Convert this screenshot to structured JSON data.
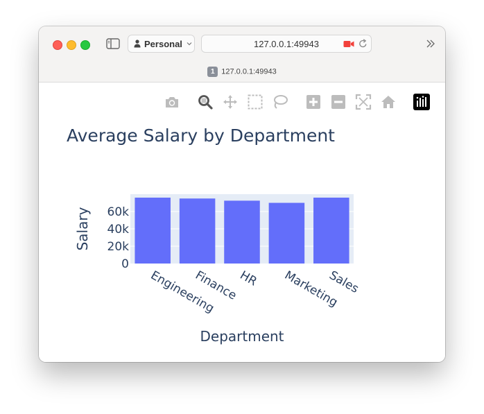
{
  "browser": {
    "profile_label": "Personal",
    "url": "127.0.0.1:49943",
    "tab_index": "1",
    "tab_label": "127.0.0.1:49943"
  },
  "modebar": {
    "icons": [
      "camera-icon",
      "zoom-icon",
      "pan-icon",
      "box-select-icon",
      "lasso-icon",
      "zoom-in-icon",
      "zoom-out-icon",
      "autoscale-icon",
      "reset-axes-icon",
      "plotly-logo-icon"
    ]
  },
  "chart_data": {
    "type": "bar",
    "title": "Average Salary by Department",
    "xlabel": "Department",
    "ylabel": "Salary",
    "categories": [
      "Engineering",
      "Finance",
      "HR",
      "Marketing",
      "Sales"
    ],
    "values": [
      76000,
      75000,
      72500,
      70000,
      76000
    ],
    "ylim": [
      0,
      80000
    ],
    "yticks": [
      0,
      20000,
      40000,
      60000
    ],
    "ytick_labels": [
      "0",
      "20k",
      "40k",
      "60k"
    ],
    "bar_color": "#636efa",
    "plot_bg": "#e5ecf6",
    "grid": true,
    "legend": "none"
  }
}
